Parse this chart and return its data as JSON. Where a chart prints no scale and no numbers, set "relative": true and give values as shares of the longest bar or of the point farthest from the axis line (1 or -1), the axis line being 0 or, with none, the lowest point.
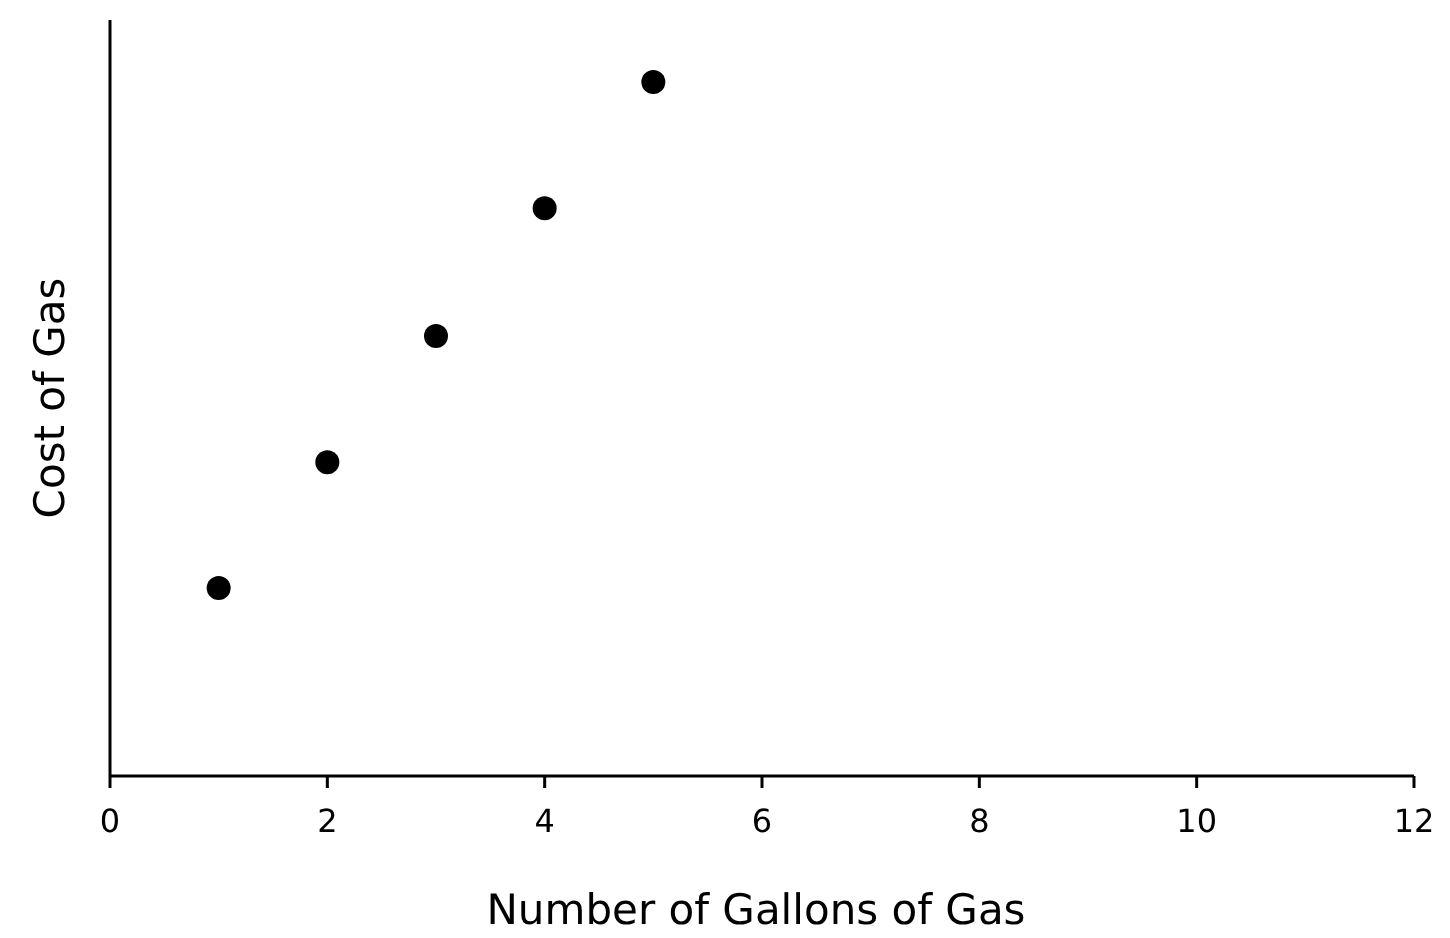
{
  "chart_data": {
    "type": "scatter",
    "xlabel": "Number of Gallons of Gas",
    "ylabel": "Cost of Gas",
    "relative": true,
    "x": [
      1,
      2,
      3,
      4,
      5
    ],
    "values": [
      0.271,
      0.452,
      0.634,
      0.818,
      1
    ],
    "color": "#000000",
    "marker": "circle",
    "xlim": [
      0,
      12
    ],
    "xticks": [
      0,
      2,
      4,
      6,
      8,
      10,
      12
    ],
    "grid": false
  }
}
